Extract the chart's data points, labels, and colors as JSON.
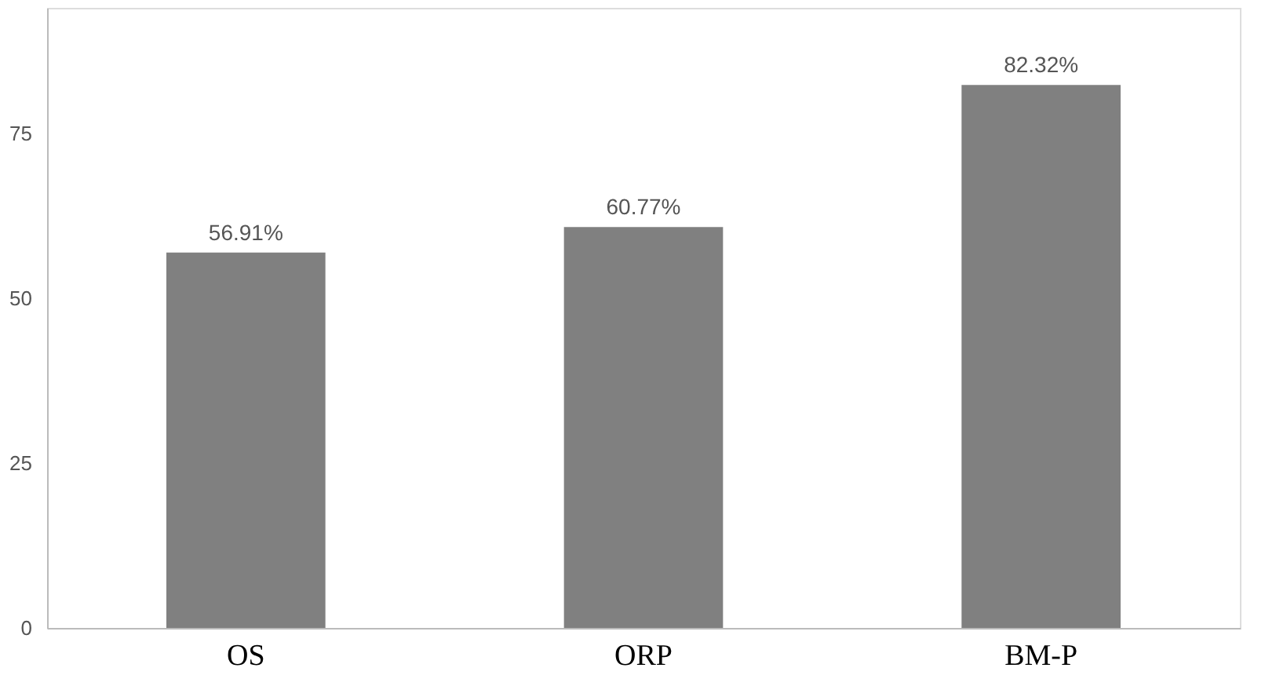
{
  "chart_data": {
    "type": "bar",
    "categories": [
      "OS",
      "ORP",
      "BM-P"
    ],
    "values": [
      56.91,
      60.77,
      82.32
    ],
    "value_labels": [
      "56.91%",
      "60.77%",
      "82.32%"
    ],
    "color": "#808080",
    "ylim": [
      0,
      94
    ],
    "yticks": [
      0,
      25,
      50,
      75
    ],
    "grid": false
  }
}
